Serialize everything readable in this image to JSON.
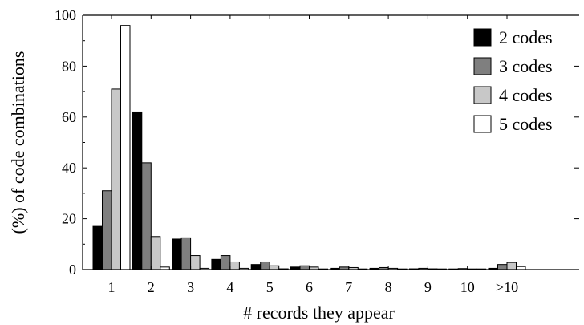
{
  "chart_data": {
    "type": "bar",
    "xlabel": "# records they appear",
    "ylabel": "(%) of code combinations",
    "ylim": [
      0,
      100
    ],
    "yticks": [
      0,
      20,
      40,
      60,
      80,
      100
    ],
    "categories": [
      "1",
      "2",
      "3",
      "4",
      "5",
      "6",
      "7",
      "8",
      "9",
      "10",
      ">10"
    ],
    "legend_position": "top-right",
    "grid": false,
    "series": [
      {
        "name": "2 codes",
        "color": "#000000",
        "values": [
          17,
          62,
          12,
          4,
          2,
          1,
          0.5,
          0.5,
          0.3,
          0.2,
          0.5
        ]
      },
      {
        "name": "3 codes",
        "color": "#7f7f7f",
        "values": [
          31,
          42,
          12.5,
          5.5,
          3,
          1.5,
          1,
          0.8,
          0.5,
          0.4,
          2
        ]
      },
      {
        "name": "4 codes",
        "color": "#c8c8c8",
        "values": [
          71,
          13,
          5.5,
          3,
          1.5,
          1,
          0.8,
          0.5,
          0.3,
          0.2,
          2.8
        ]
      },
      {
        "name": "5 codes",
        "color": "#ffffff",
        "values": [
          96,
          1,
          0.5,
          0.5,
          0.3,
          0.2,
          0.2,
          0.2,
          0.1,
          0.1,
          1.2
        ]
      }
    ]
  }
}
